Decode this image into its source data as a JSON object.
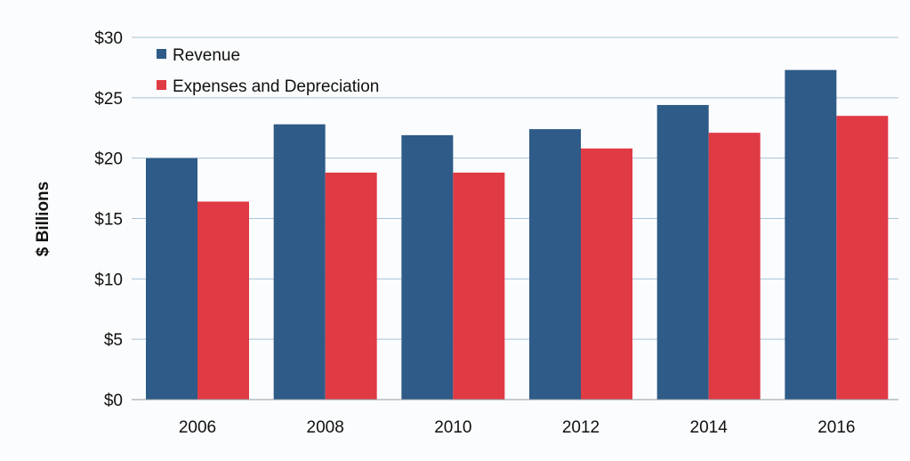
{
  "chart_data": {
    "type": "bar",
    "categories": [
      "2006",
      "2008",
      "2010",
      "2012",
      "2014",
      "2016"
    ],
    "series": [
      {
        "name": "Revenue",
        "values": [
          20.0,
          22.8,
          21.9,
          22.4,
          24.4,
          27.3
        ],
        "color": "#2e5b87"
      },
      {
        "name": "Expenses and Depreciation",
        "values": [
          16.4,
          18.8,
          18.8,
          20.8,
          22.1,
          23.5
        ],
        "color": "#e03a45"
      }
    ],
    "ylabel": "$ Billions",
    "ylim": [
      0,
      30
    ],
    "y_ticks": [
      0,
      5,
      10,
      15,
      20,
      25,
      30
    ],
    "y_tick_labels": [
      "$0",
      "$5",
      "$10",
      "$15",
      "$20",
      "$25",
      "$30"
    ],
    "grid": true,
    "legend_position": "top-left"
  }
}
